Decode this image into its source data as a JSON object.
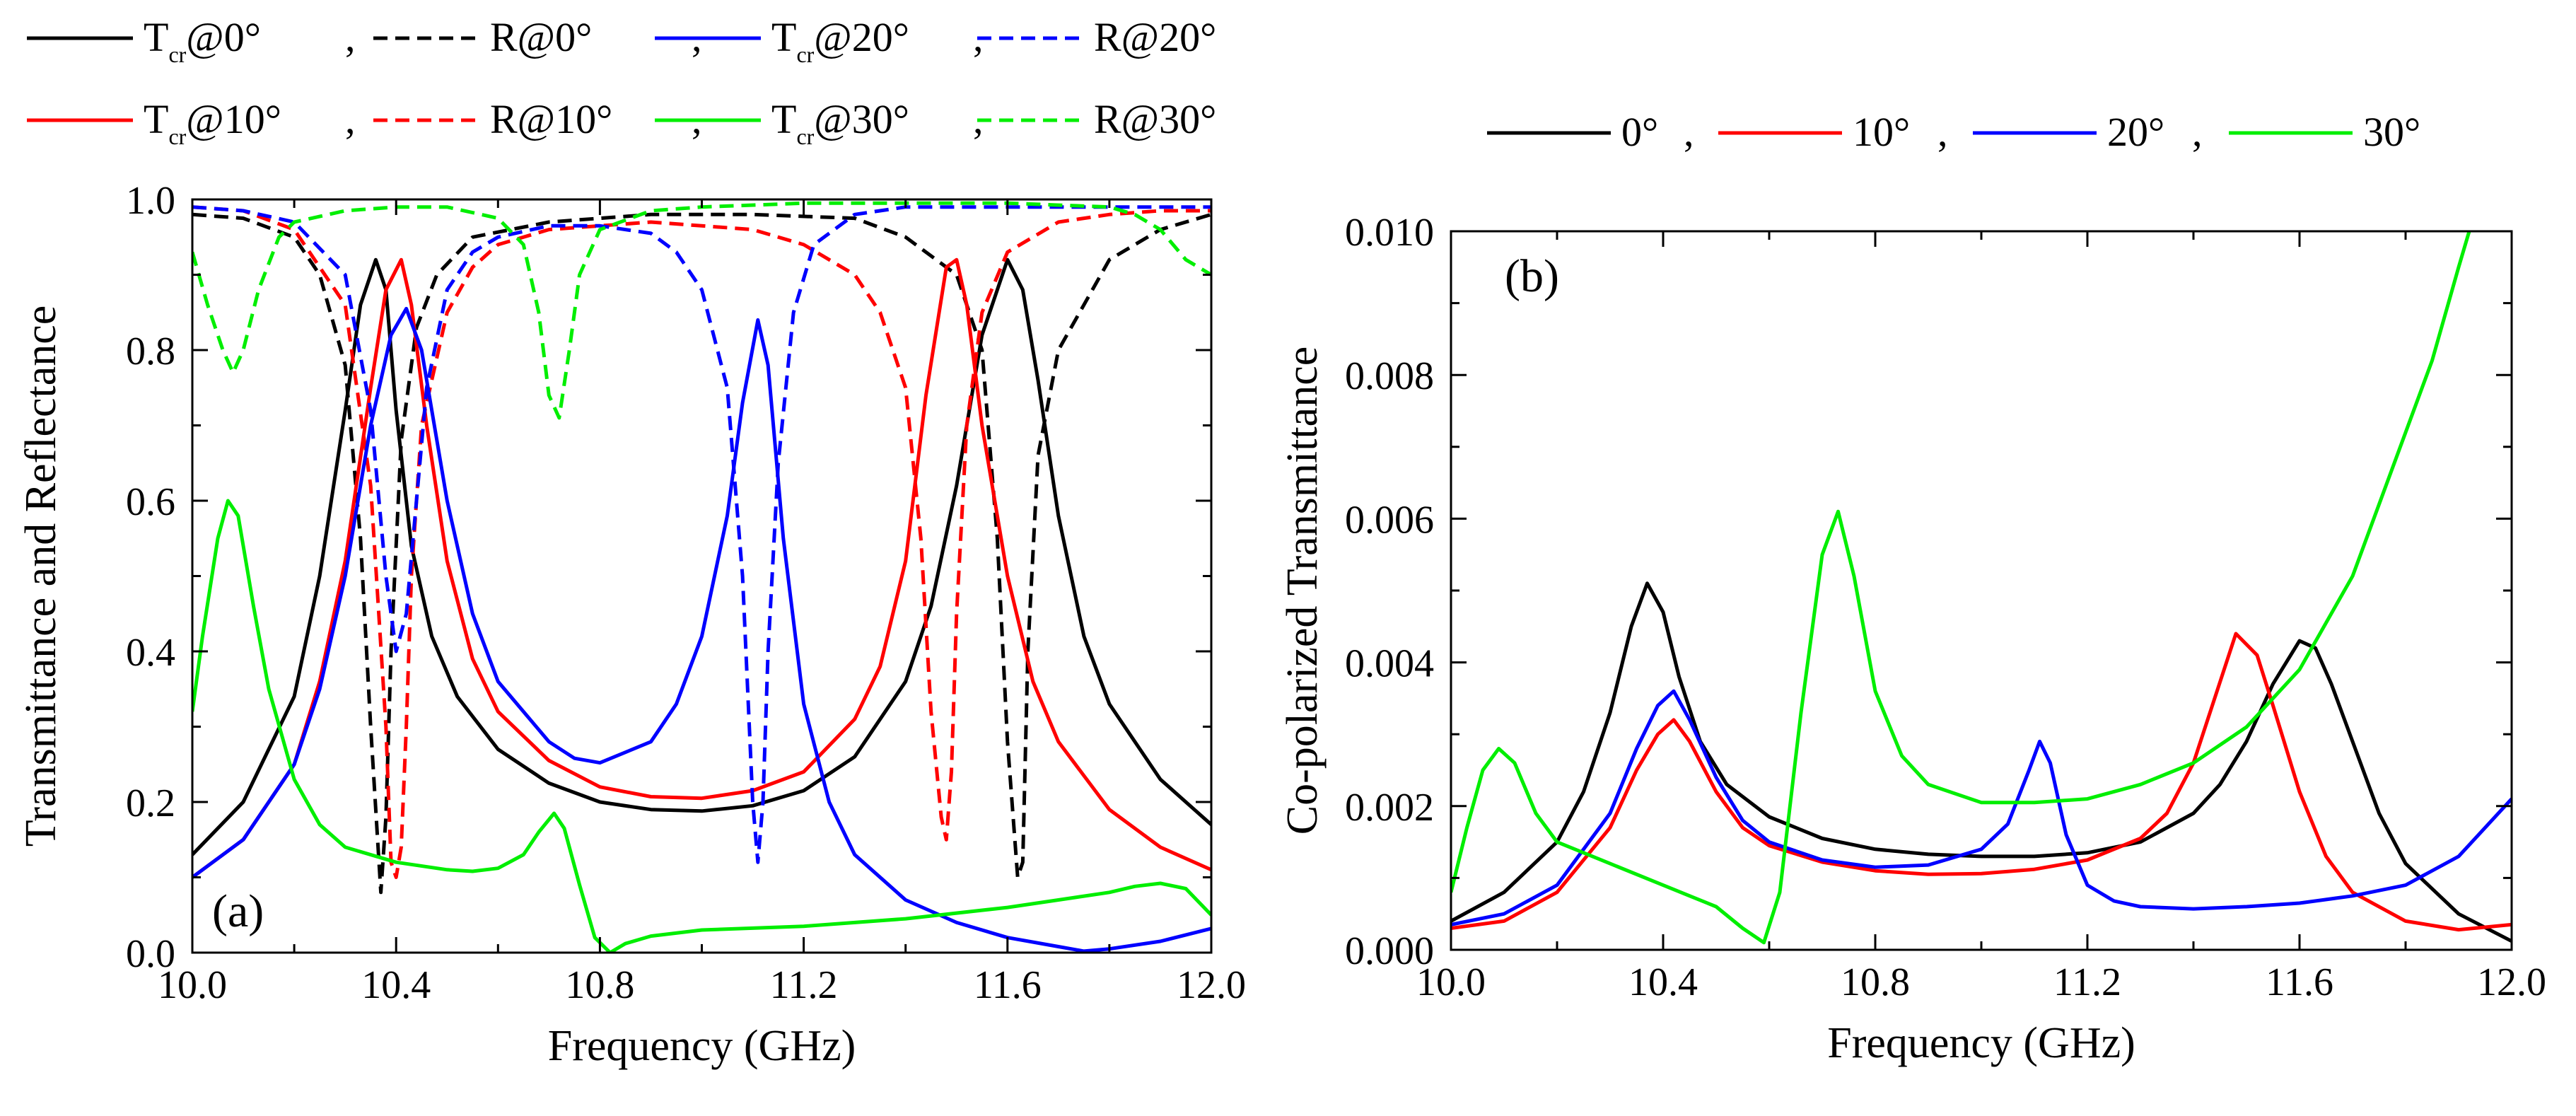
{
  "chart_data": [
    {
      "panel": "(a)",
      "type": "line",
      "xlabel": "Frequency (GHz)",
      "ylabel": "Transmittance and Reflectance",
      "xlim": [
        10.0,
        12.0
      ],
      "ylim": [
        0.0,
        1.0
      ],
      "xticks": [
        "10.0",
        "10.4",
        "10.8",
        "11.2",
        "11.6",
        "12.0"
      ],
      "yticks": [
        "0.0",
        "0.2",
        "0.4",
        "0.6",
        "0.8",
        "1.0"
      ],
      "legend": [
        [
          {
            "main": "T",
            "sub": "cr",
            "rest": "@0°",
            "sep": ",",
            "color": "#000000",
            "dash": false
          },
          {
            "main": "R@0°",
            "sub": "",
            "rest": "",
            "sep": ",",
            "color": "#000000",
            "dash": true
          },
          {
            "main": "T",
            "sub": "cr",
            "rest": "@20°",
            "sep": ",",
            "color": "#0000ff",
            "dash": false
          },
          {
            "main": "R@20°",
            "sub": "",
            "rest": "",
            "sep": "",
            "color": "#0000ff",
            "dash": true
          }
        ],
        [
          {
            "main": "T",
            "sub": "cr",
            "rest": "@10°",
            "sep": ",",
            "color": "#ff0000",
            "dash": false
          },
          {
            "main": "R@10°",
            "sub": "",
            "rest": "",
            "sep": ",",
            "color": "#ff0000",
            "dash": true
          },
          {
            "main": "T",
            "sub": "cr",
            "rest": "@30°",
            "sep": ",",
            "color": "#00ee00",
            "dash": false
          },
          {
            "main": "R@30°",
            "sub": "",
            "rest": "",
            "sep": "",
            "color": "#00ee00",
            "dash": true
          }
        ]
      ],
      "series": [
        {
          "name": "Tcr@0°",
          "color": "#000000",
          "dash": false,
          "x": [
            10.0,
            10.1,
            10.2,
            10.25,
            10.3,
            10.33,
            10.36,
            10.38,
            10.4,
            10.43,
            10.47,
            10.52,
            10.6,
            10.7,
            10.8,
            10.9,
            11.0,
            11.1,
            11.2,
            11.3,
            11.4,
            11.45,
            11.5,
            11.55,
            11.6,
            11.63,
            11.66,
            11.7,
            11.75,
            11.8,
            11.9,
            12.0
          ],
          "y": [
            0.13,
            0.2,
            0.34,
            0.5,
            0.72,
            0.86,
            0.92,
            0.88,
            0.72,
            0.54,
            0.42,
            0.34,
            0.27,
            0.225,
            0.2,
            0.19,
            0.188,
            0.195,
            0.215,
            0.26,
            0.36,
            0.46,
            0.62,
            0.82,
            0.92,
            0.88,
            0.76,
            0.58,
            0.42,
            0.33,
            0.23,
            0.17
          ]
        },
        {
          "name": "R@0°",
          "color": "#000000",
          "dash": true,
          "x": [
            10.0,
            10.1,
            10.2,
            10.25,
            10.3,
            10.33,
            10.35,
            10.37,
            10.38,
            10.39,
            10.41,
            10.44,
            10.48,
            10.55,
            10.7,
            10.9,
            11.1,
            11.3,
            11.4,
            11.5,
            11.55,
            11.58,
            11.6,
            11.62,
            11.63,
            11.64,
            11.66,
            11.7,
            11.8,
            11.9,
            12.0
          ],
          "y": [
            0.98,
            0.975,
            0.95,
            0.9,
            0.78,
            0.55,
            0.3,
            0.08,
            0.18,
            0.4,
            0.68,
            0.83,
            0.9,
            0.95,
            0.97,
            0.98,
            0.98,
            0.975,
            0.95,
            0.9,
            0.8,
            0.55,
            0.28,
            0.1,
            0.12,
            0.4,
            0.66,
            0.8,
            0.92,
            0.96,
            0.98
          ]
        },
        {
          "name": "Tcr@10°",
          "color": "#ff0000",
          "dash": false,
          "x": [
            10.0,
            10.1,
            10.2,
            10.25,
            10.3,
            10.35,
            10.38,
            10.41,
            10.43,
            10.46,
            10.5,
            10.55,
            10.6,
            10.7,
            10.8,
            10.9,
            11.0,
            11.1,
            11.2,
            11.3,
            11.35,
            11.4,
            11.44,
            11.48,
            11.5,
            11.52,
            11.55,
            11.6,
            11.65,
            11.7,
            11.8,
            11.9,
            12.0
          ],
          "y": [
            0.1,
            0.15,
            0.25,
            0.36,
            0.52,
            0.75,
            0.88,
            0.92,
            0.86,
            0.7,
            0.52,
            0.39,
            0.32,
            0.255,
            0.22,
            0.207,
            0.205,
            0.215,
            0.24,
            0.31,
            0.38,
            0.52,
            0.74,
            0.91,
            0.92,
            0.86,
            0.7,
            0.5,
            0.36,
            0.28,
            0.19,
            0.14,
            0.11
          ]
        },
        {
          "name": "R@10°",
          "color": "#ff0000",
          "dash": true,
          "x": [
            10.0,
            10.1,
            10.2,
            10.3,
            10.35,
            10.38,
            10.39,
            10.4,
            10.41,
            10.42,
            10.43,
            10.45,
            10.5,
            10.55,
            10.6,
            10.7,
            10.9,
            11.1,
            11.2,
            11.3,
            11.35,
            11.4,
            11.43,
            11.45,
            11.47,
            11.48,
            11.49,
            11.5,
            11.52,
            11.55,
            11.6,
            11.7,
            11.8,
            11.9,
            12.0
          ],
          "y": [
            0.99,
            0.985,
            0.96,
            0.86,
            0.62,
            0.3,
            0.12,
            0.1,
            0.14,
            0.3,
            0.5,
            0.7,
            0.85,
            0.91,
            0.94,
            0.96,
            0.97,
            0.96,
            0.94,
            0.9,
            0.85,
            0.75,
            0.55,
            0.32,
            0.18,
            0.15,
            0.24,
            0.45,
            0.7,
            0.85,
            0.93,
            0.97,
            0.98,
            0.985,
            0.985
          ]
        },
        {
          "name": "Tcr@20°",
          "color": "#0000ff",
          "dash": false,
          "x": [
            10.0,
            10.1,
            10.2,
            10.25,
            10.3,
            10.35,
            10.39,
            10.42,
            10.45,
            10.5,
            10.55,
            10.6,
            10.7,
            10.75,
            10.8,
            10.9,
            10.95,
            11.0,
            11.05,
            11.08,
            11.11,
            11.13,
            11.16,
            11.2,
            11.25,
            11.3,
            11.4,
            11.5,
            11.6,
            11.7,
            11.75,
            11.8,
            11.9,
            12.0
          ],
          "y": [
            0.1,
            0.15,
            0.25,
            0.35,
            0.5,
            0.7,
            0.82,
            0.855,
            0.8,
            0.6,
            0.45,
            0.36,
            0.28,
            0.258,
            0.252,
            0.28,
            0.33,
            0.42,
            0.58,
            0.73,
            0.84,
            0.78,
            0.55,
            0.33,
            0.2,
            0.13,
            0.07,
            0.04,
            0.02,
            0.008,
            0.002,
            0.005,
            0.015,
            0.032
          ]
        },
        {
          "name": "R@20°",
          "color": "#0000ff",
          "dash": true,
          "x": [
            10.0,
            10.1,
            10.2,
            10.3,
            10.35,
            10.38,
            10.4,
            10.42,
            10.44,
            10.46,
            10.5,
            10.55,
            10.6,
            10.7,
            10.8,
            10.9,
            10.95,
            11.0,
            11.05,
            11.08,
            11.1,
            11.11,
            11.12,
            11.13,
            11.15,
            11.18,
            11.22,
            11.3,
            11.4,
            11.5,
            11.6,
            11.8,
            12.0
          ],
          "y": [
            0.99,
            0.985,
            0.97,
            0.9,
            0.72,
            0.5,
            0.4,
            0.45,
            0.6,
            0.75,
            0.88,
            0.93,
            0.95,
            0.965,
            0.965,
            0.955,
            0.93,
            0.88,
            0.75,
            0.5,
            0.2,
            0.12,
            0.2,
            0.4,
            0.65,
            0.85,
            0.94,
            0.98,
            0.99,
            0.99,
            0.99,
            0.99,
            0.99
          ]
        },
        {
          "name": "Tcr@30°",
          "color": "#00ee00",
          "dash": false,
          "x": [
            10.0,
            10.02,
            10.05,
            10.07,
            10.09,
            10.12,
            10.15,
            10.2,
            10.25,
            10.3,
            10.4,
            10.5,
            10.55,
            10.6,
            10.65,
            10.68,
            10.71,
            10.73,
            10.76,
            10.79,
            10.82,
            10.85,
            10.9,
            11.0,
            11.2,
            11.4,
            11.6,
            11.7,
            11.8,
            11.85,
            11.9,
            11.95,
            12.0
          ],
          "y": [
            0.32,
            0.42,
            0.55,
            0.6,
            0.58,
            0.46,
            0.35,
            0.23,
            0.17,
            0.14,
            0.12,
            0.11,
            0.108,
            0.112,
            0.13,
            0.16,
            0.185,
            0.165,
            0.09,
            0.02,
            0.0,
            0.012,
            0.022,
            0.03,
            0.035,
            0.045,
            0.06,
            0.07,
            0.08,
            0.088,
            0.092,
            0.085,
            0.05
          ]
        },
        {
          "name": "R@30°",
          "color": "#00ee00",
          "dash": true,
          "x": [
            10.0,
            10.03,
            10.06,
            10.08,
            10.1,
            10.13,
            10.17,
            10.2,
            10.3,
            10.4,
            10.5,
            10.6,
            10.65,
            10.68,
            10.7,
            10.72,
            10.74,
            10.76,
            10.8,
            10.9,
            11.0,
            11.2,
            11.4,
            11.6,
            11.8,
            11.85,
            11.9,
            11.95,
            12.0
          ],
          "y": [
            0.93,
            0.86,
            0.8,
            0.77,
            0.8,
            0.88,
            0.95,
            0.97,
            0.985,
            0.99,
            0.99,
            0.975,
            0.94,
            0.85,
            0.74,
            0.71,
            0.8,
            0.9,
            0.96,
            0.985,
            0.99,
            0.995,
            0.995,
            0.995,
            0.99,
            0.98,
            0.96,
            0.92,
            0.9
          ]
        }
      ]
    },
    {
      "panel": "(b)",
      "type": "line",
      "xlabel": "Frequency (GHz)",
      "ylabel": "Co-polarized Transmittance",
      "xlim": [
        10.0,
        12.0
      ],
      "ylim": [
        0.0,
        0.01
      ],
      "xticks": [
        "10.0",
        "10.4",
        "10.8",
        "11.2",
        "11.6",
        "12.0"
      ],
      "yticks": [
        "0.000",
        "0.002",
        "0.004",
        "0.006",
        "0.008",
        "0.010"
      ],
      "legend": [
        {
          "text": "0°",
          "sep": ",",
          "color": "#000000"
        },
        {
          "text": "10°",
          "sep": ",",
          "color": "#ff0000"
        },
        {
          "text": "20°",
          "sep": ",",
          "color": "#0000ff"
        },
        {
          "text": "30°",
          "sep": "",
          "color": "#00ee00"
        }
      ],
      "series": [
        {
          "name": "0°",
          "color": "#000000",
          "x": [
            10.0,
            10.1,
            10.2,
            10.25,
            10.3,
            10.34,
            10.37,
            10.4,
            10.43,
            10.47,
            10.52,
            10.6,
            10.7,
            10.8,
            10.9,
            11.0,
            11.1,
            11.2,
            11.3,
            11.4,
            11.45,
            11.5,
            11.55,
            11.6,
            11.63,
            11.66,
            11.7,
            11.75,
            11.8,
            11.9,
            12.0
          ],
          "y": [
            0.0004,
            0.0008,
            0.0015,
            0.0022,
            0.0033,
            0.0045,
            0.0051,
            0.0047,
            0.0038,
            0.0029,
            0.0023,
            0.00185,
            0.00155,
            0.0014,
            0.00133,
            0.0013,
            0.0013,
            0.00135,
            0.0015,
            0.0019,
            0.0023,
            0.0029,
            0.0037,
            0.0043,
            0.0042,
            0.0037,
            0.0029,
            0.0019,
            0.0012,
            0.0005,
            0.00012
          ]
        },
        {
          "name": "10°",
          "color": "#ff0000",
          "x": [
            10.0,
            10.1,
            10.2,
            10.3,
            10.35,
            10.39,
            10.42,
            10.45,
            10.5,
            10.55,
            10.6,
            10.7,
            10.8,
            10.9,
            11.0,
            11.1,
            11.2,
            11.3,
            11.35,
            11.4,
            11.44,
            11.48,
            11.52,
            11.55,
            11.6,
            11.65,
            11.7,
            11.8,
            11.9,
            12.0
          ],
          "y": [
            0.0003,
            0.0004,
            0.0008,
            0.0017,
            0.0025,
            0.003,
            0.0032,
            0.0029,
            0.0022,
            0.0017,
            0.00145,
            0.00122,
            0.0011,
            0.00105,
            0.00106,
            0.00112,
            0.00125,
            0.00155,
            0.0019,
            0.0026,
            0.0035,
            0.0044,
            0.0041,
            0.0034,
            0.0022,
            0.0013,
            0.0008,
            0.0004,
            0.00028,
            0.00035
          ]
        },
        {
          "name": "20°",
          "color": "#0000ff",
          "x": [
            10.0,
            10.1,
            10.2,
            10.3,
            10.35,
            10.39,
            10.42,
            10.45,
            10.5,
            10.55,
            10.6,
            10.7,
            10.8,
            10.9,
            11.0,
            11.05,
            11.09,
            11.11,
            11.13,
            11.16,
            11.2,
            11.25,
            11.3,
            11.4,
            11.5,
            11.6,
            11.7,
            11.8,
            11.9,
            12.0
          ],
          "y": [
            0.00035,
            0.0005,
            0.0009,
            0.0019,
            0.0028,
            0.0034,
            0.0036,
            0.0032,
            0.0024,
            0.0018,
            0.0015,
            0.00125,
            0.00115,
            0.00118,
            0.0014,
            0.00175,
            0.0025,
            0.0029,
            0.0026,
            0.0016,
            0.0009,
            0.00068,
            0.0006,
            0.00057,
            0.0006,
            0.00065,
            0.00075,
            0.0009,
            0.0013,
            0.0021
          ]
        },
        {
          "name": "30°",
          "color": "#00ee00",
          "x": [
            10.0,
            10.03,
            10.06,
            10.09,
            10.12,
            10.16,
            10.2,
            10.3,
            10.4,
            10.5,
            10.55,
            10.59,
            10.62,
            10.66,
            10.7,
            10.73,
            10.76,
            10.8,
            10.85,
            10.9,
            11.0,
            11.1,
            11.2,
            11.3,
            11.4,
            11.5,
            11.6,
            11.7,
            11.75,
            11.8,
            11.85,
            11.9,
            11.92
          ],
          "y": [
            0.0008,
            0.0017,
            0.0025,
            0.0028,
            0.0026,
            0.0019,
            0.0015,
            0.0012,
            0.0009,
            0.0006,
            0.0003,
            0.0001,
            0.0008,
            0.0033,
            0.0055,
            0.0061,
            0.0052,
            0.0036,
            0.0027,
            0.0023,
            0.00205,
            0.00205,
            0.0021,
            0.0023,
            0.0026,
            0.0031,
            0.0039,
            0.0052,
            0.0062,
            0.0072,
            0.0082,
            0.0095,
            0.01
          ]
        }
      ]
    }
  ]
}
